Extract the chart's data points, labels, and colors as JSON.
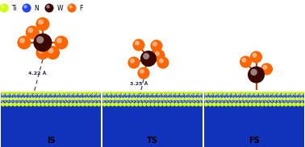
{
  "legend_items": [
    {
      "label": "Ti",
      "color": "#ccff00"
    },
    {
      "label": "N",
      "color": "#2244ee"
    },
    {
      "label": "W",
      "color": "#3a0800"
    },
    {
      "label": "F",
      "color": "#ff6600"
    }
  ],
  "panels": [
    "IS",
    "TS",
    "FS"
  ],
  "bg_color": "#ffffff",
  "Ti_color": "#ccff00",
  "N_color": "#2244ee",
  "W_color": "#3a0800",
  "F_color": "#ff6600",
  "bond_color": "#cc4400",
  "annotation_color": "#222255"
}
